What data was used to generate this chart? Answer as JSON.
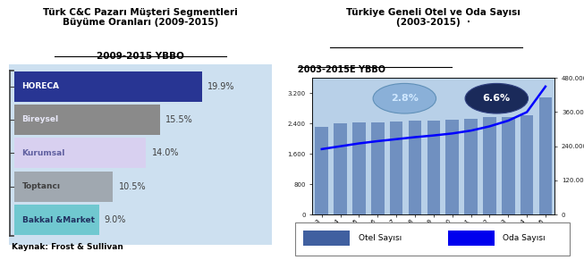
{
  "left_title": "Türk C&C Pazarı Müşteri Segmentleri\nBüyüme Oranları (2009-2015)",
  "left_subtitle": "2009-2015 YBBO",
  "left_bg_color": "#cde0f0",
  "bar_categories": [
    "HORECA",
    "Bireysel",
    "Kurumsal",
    "Toptancı",
    "Bakkal &Market"
  ],
  "bar_values": [
    19.9,
    15.5,
    14.0,
    10.5,
    9.0
  ],
  "bar_colors": [
    "#283593",
    "#8a8a8a",
    "#d8d0f0",
    "#a0a8b0",
    "#70c8d0"
  ],
  "bar_text_colors": [
    "#ffffff",
    "#e8e8f8",
    "#6060a0",
    "#404040",
    "#203060"
  ],
  "bar_value_labels": [
    "19.9%",
    "15.5%",
    "14.0%",
    "10.5%",
    "9.0%"
  ],
  "source_text": "Kaynak: Frost & Sullivan",
  "right_title": "Türkiye Geneli Otel ve Oda Sayısı\n(2003-2015)  ·",
  "right_subtitle": "2003-2015E YBBO",
  "right_bg_color": "#b8d0e8",
  "years": [
    "2003",
    "2004",
    "2005",
    "2006",
    "2007",
    "2008",
    "2009",
    "2010",
    "2011",
    "2012",
    "2013",
    "2014",
    "2015"
  ],
  "otel_values": [
    2300,
    2400,
    2420,
    2440,
    2460,
    2480,
    2480,
    2510,
    2530,
    2560,
    2560,
    2620,
    3100
  ],
  "oda_values": [
    230000,
    240000,
    250000,
    258000,
    265000,
    272000,
    278000,
    285000,
    295000,
    310000,
    330000,
    360000,
    450000
  ],
  "otel_bar_color": "#7090c0",
  "oda_line_color": "#0000ff",
  "bubble1_text": "2.8%",
  "bubble1_color": "#8ab0d8",
  "bubble2_text": "6.6%",
  "bubble2_color": "#1a2a5a",
  "bubble2_text_color": "#ffffff",
  "legend_otel_color": "#4060a0",
  "legend_oda_color": "#0000ee"
}
